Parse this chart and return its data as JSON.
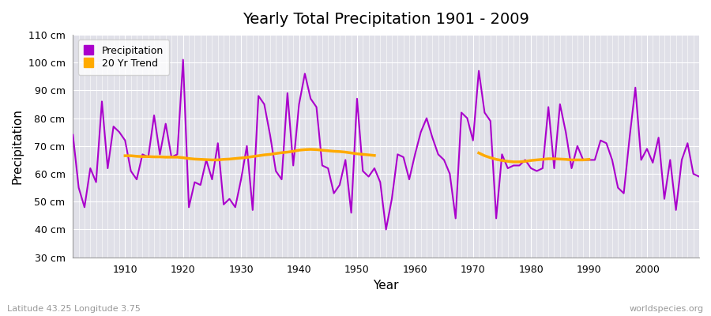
{
  "title": "Yearly Total Precipitation 1901 - 2009",
  "xlabel": "Year",
  "ylabel": "Precipitation",
  "subtitle": "Latitude 43.25 Longitude 3.75",
  "watermark": "worldspecies.org",
  "ylim": [
    30,
    110
  ],
  "yticks": [
    30,
    40,
    50,
    60,
    70,
    80,
    90,
    100,
    110
  ],
  "ytick_labels": [
    "30 cm",
    "40 cm",
    "50 cm",
    "60 cm",
    "70 cm",
    "80 cm",
    "90 cm",
    "100 cm",
    "110 cm"
  ],
  "precip_color": "#aa00cc",
  "trend_color": "#ffaa00",
  "fig_bg_color": "#ffffff",
  "plot_bg_color": "#e0e0e8",
  "years": [
    1901,
    1902,
    1903,
    1904,
    1905,
    1906,
    1907,
    1908,
    1909,
    1910,
    1911,
    1912,
    1913,
    1914,
    1915,
    1916,
    1917,
    1918,
    1919,
    1920,
    1921,
    1922,
    1923,
    1924,
    1925,
    1926,
    1927,
    1928,
    1929,
    1930,
    1931,
    1932,
    1933,
    1934,
    1935,
    1936,
    1937,
    1938,
    1939,
    1940,
    1941,
    1942,
    1943,
    1944,
    1945,
    1946,
    1947,
    1948,
    1949,
    1950,
    1951,
    1952,
    1953,
    1954,
    1955,
    1956,
    1957,
    1958,
    1959,
    1960,
    1961,
    1962,
    1963,
    1964,
    1965,
    1966,
    1967,
    1968,
    1969,
    1970,
    1971,
    1972,
    1973,
    1974,
    1975,
    1976,
    1977,
    1978,
    1979,
    1980,
    1981,
    1982,
    1983,
    1984,
    1985,
    1986,
    1987,
    1988,
    1989,
    1990,
    1991,
    1992,
    1993,
    1994,
    1995,
    1996,
    1997,
    1998,
    1999,
    2000,
    2001,
    2002,
    2003,
    2004,
    2005,
    2006,
    2007,
    2008,
    2009
  ],
  "precipitation": [
    74,
    55,
    48,
    62,
    57,
    86,
    62,
    77,
    75,
    72,
    61,
    58,
    67,
    66,
    81,
    67,
    78,
    66,
    67,
    101,
    48,
    57,
    56,
    65,
    58,
    71,
    49,
    51,
    48,
    58,
    70,
    47,
    88,
    85,
    74,
    61,
    58,
    89,
    63,
    85,
    96,
    87,
    84,
    63,
    62,
    53,
    56,
    65,
    46,
    87,
    61,
    59,
    62,
    57,
    40,
    51,
    67,
    66,
    58,
    67,
    75,
    80,
    73,
    67,
    65,
    60,
    44,
    82,
    80,
    72,
    97,
    82,
    79,
    44,
    67,
    62,
    63,
    63,
    65,
    62,
    61,
    62,
    84,
    62,
    85,
    75,
    62,
    70,
    65,
    65,
    65,
    72,
    71,
    65,
    55,
    53,
    73,
    91,
    65,
    69,
    64,
    73,
    51,
    65,
    47,
    65,
    71,
    60,
    59
  ],
  "trend_seg1_years": [
    1910,
    1911,
    1912,
    1913,
    1914,
    1915,
    1916,
    1917,
    1918,
    1919,
    1920,
    1921,
    1922,
    1923,
    1924,
    1925,
    1926,
    1927,
    1928,
    1929,
    1930,
    1931,
    1932,
    1933,
    1934,
    1935,
    1936,
    1937,
    1938,
    1939,
    1940,
    1941,
    1942,
    1943,
    1944,
    1945,
    1946,
    1947,
    1948,
    1949,
    1950,
    1951,
    1952,
    1953
  ],
  "trend_seg1_values": [
    66.5,
    66.5,
    66.3,
    66.2,
    66.2,
    66.1,
    66.1,
    66.0,
    66.0,
    66.0,
    65.8,
    65.5,
    65.3,
    65.2,
    65.1,
    65.0,
    65.0,
    65.2,
    65.3,
    65.5,
    65.7,
    65.9,
    66.2,
    66.5,
    66.8,
    67.0,
    67.3,
    67.6,
    67.8,
    68.1,
    68.5,
    68.7,
    68.8,
    68.7,
    68.5,
    68.3,
    68.1,
    68.0,
    67.8,
    67.5,
    67.2,
    67.0,
    66.8,
    66.6
  ],
  "trend_seg2_years": [
    1971,
    1972,
    1973,
    1974,
    1975,
    1976,
    1977,
    1978,
    1979,
    1980,
    1981,
    1982,
    1983,
    1984,
    1985,
    1986,
    1987,
    1988,
    1989,
    1990
  ],
  "trend_seg2_values": [
    67.5,
    66.5,
    65.8,
    65.2,
    64.8,
    64.5,
    64.3,
    64.3,
    64.5,
    64.8,
    65.0,
    65.2,
    65.4,
    65.4,
    65.3,
    65.2,
    65.0,
    65.0,
    65.0,
    65.2
  ]
}
